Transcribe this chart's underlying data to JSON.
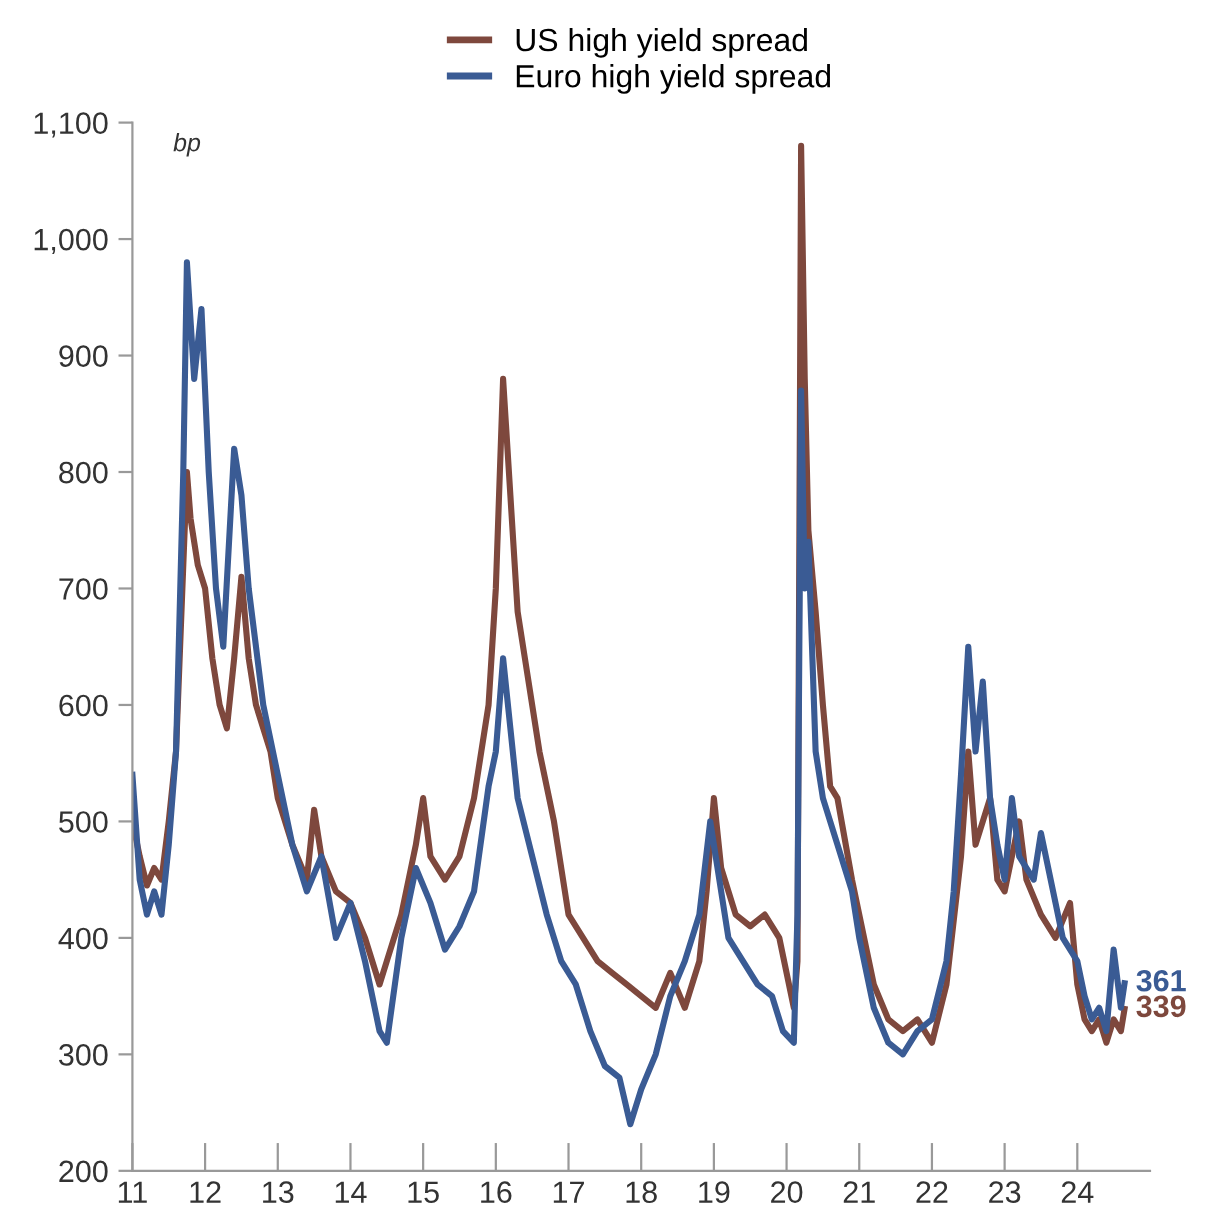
{
  "chart_data": {
    "type": "line",
    "series": [
      {
        "name": "US high yield spread",
        "color": "#7e483d",
        "x": [
          2011.0,
          2011.1,
          2011.2,
          2011.3,
          2011.4,
          2011.5,
          2011.6,
          2011.7,
          2011.75,
          2011.8,
          2011.9,
          2012.0,
          2012.1,
          2012.2,
          2012.3,
          2012.4,
          2012.5,
          2012.6,
          2012.7,
          2012.8,
          2012.9,
          2013.0,
          2013.2,
          2013.4,
          2013.5,
          2013.6,
          2013.8,
          2014.0,
          2014.2,
          2014.4,
          2014.5,
          2014.7,
          2014.9,
          2015.0,
          2015.1,
          2015.3,
          2015.5,
          2015.7,
          2015.9,
          2016.0,
          2016.1,
          2016.2,
          2016.3,
          2016.4,
          2016.6,
          2016.8,
          2017.0,
          2017.2,
          2017.4,
          2017.6,
          2017.8,
          2018.0,
          2018.2,
          2018.4,
          2018.6,
          2018.8,
          2018.9,
          2019.0,
          2019.1,
          2019.3,
          2019.5,
          2019.7,
          2019.9,
          2020.1,
          2020.15,
          2020.2,
          2020.25,
          2020.3,
          2020.4,
          2020.5,
          2020.6,
          2020.7,
          2020.9,
          2021.0,
          2021.2,
          2021.4,
          2021.6,
          2021.8,
          2022.0,
          2022.2,
          2022.4,
          2022.5,
          2022.6,
          2022.8,
          2022.9,
          2023.0,
          2023.2,
          2023.3,
          2023.5,
          2023.7,
          2023.9,
          2024.0,
          2024.1,
          2024.2,
          2024.3,
          2024.4,
          2024.5,
          2024.6,
          2024.65
        ],
        "values": [
          500,
          470,
          445,
          460,
          450,
          500,
          560,
          720,
          800,
          760,
          720,
          700,
          640,
          600,
          580,
          640,
          710,
          640,
          600,
          580,
          560,
          520,
          480,
          450,
          510,
          470,
          440,
          430,
          400,
          360,
          380,
          420,
          480,
          520,
          470,
          450,
          470,
          520,
          600,
          700,
          880,
          780,
          680,
          640,
          560,
          500,
          420,
          400,
          380,
          370,
          360,
          350,
          340,
          370,
          340,
          380,
          440,
          520,
          460,
          420,
          410,
          420,
          400,
          340,
          380,
          1080,
          880,
          750,
          680,
          600,
          530,
          520,
          450,
          420,
          360,
          330,
          320,
          330,
          310,
          360,
          470,
          560,
          480,
          520,
          450,
          440,
          500,
          450,
          420,
          400,
          430,
          360,
          330,
          320,
          330,
          310,
          330,
          320,
          339
        ]
      },
      {
        "name": "Euro high yield spread",
        "color": "#3a5b94",
        "x": [
          2011.0,
          2011.1,
          2011.2,
          2011.3,
          2011.4,
          2011.5,
          2011.6,
          2011.7,
          2011.75,
          2011.85,
          2011.95,
          2012.05,
          2012.15,
          2012.25,
          2012.4,
          2012.5,
          2012.6,
          2012.7,
          2012.8,
          2013.0,
          2013.2,
          2013.4,
          2013.6,
          2013.8,
          2014.0,
          2014.2,
          2014.4,
          2014.5,
          2014.7,
          2014.9,
          2015.1,
          2015.3,
          2015.5,
          2015.7,
          2015.9,
          2016.0,
          2016.1,
          2016.2,
          2016.3,
          2016.5,
          2016.7,
          2016.9,
          2017.1,
          2017.3,
          2017.5,
          2017.7,
          2017.85,
          2018.0,
          2018.2,
          2018.4,
          2018.6,
          2018.8,
          2018.95,
          2019.0,
          2019.2,
          2019.4,
          2019.6,
          2019.8,
          2019.95,
          2020.1,
          2020.15,
          2020.2,
          2020.25,
          2020.3,
          2020.4,
          2020.5,
          2020.7,
          2020.9,
          2021.0,
          2021.2,
          2021.4,
          2021.6,
          2021.8,
          2022.0,
          2022.2,
          2022.3,
          2022.4,
          2022.5,
          2022.6,
          2022.7,
          2022.8,
          2022.9,
          2023.0,
          2023.1,
          2023.2,
          2023.4,
          2023.5,
          2023.7,
          2023.8,
          2024.0,
          2024.1,
          2024.2,
          2024.3,
          2024.4,
          2024.5,
          2024.6,
          2024.65
        ],
        "values": [
          540,
          450,
          420,
          440,
          420,
          480,
          560,
          800,
          980,
          880,
          940,
          800,
          700,
          650,
          820,
          780,
          700,
          650,
          600,
          540,
          480,
          440,
          470,
          400,
          430,
          380,
          320,
          310,
          400,
          460,
          430,
          390,
          410,
          440,
          530,
          560,
          640,
          580,
          520,
          470,
          420,
          380,
          360,
          320,
          290,
          280,
          240,
          270,
          300,
          350,
          380,
          420,
          500,
          480,
          400,
          380,
          360,
          350,
          320,
          310,
          420,
          870,
          700,
          740,
          560,
          520,
          480,
          440,
          400,
          340,
          310,
          300,
          320,
          330,
          380,
          440,
          540,
          650,
          560,
          620,
          520,
          480,
          450,
          520,
          470,
          450,
          490,
          430,
          400,
          380,
          350,
          330,
          340,
          320,
          390,
          340,
          361
        ]
      }
    ],
    "xlim": [
      2011,
      2025
    ],
    "xticks": [
      {
        "value": 2011,
        "label": "11"
      },
      {
        "value": 2012,
        "label": "12"
      },
      {
        "value": 2013,
        "label": "13"
      },
      {
        "value": 2014,
        "label": "14"
      },
      {
        "value": 2015,
        "label": "15"
      },
      {
        "value": 2016,
        "label": "16"
      },
      {
        "value": 2017,
        "label": "17"
      },
      {
        "value": 2018,
        "label": "18"
      },
      {
        "value": 2019,
        "label": "19"
      },
      {
        "value": 2020,
        "label": "20"
      },
      {
        "value": 2021,
        "label": "21"
      },
      {
        "value": 2022,
        "label": "22"
      },
      {
        "value": 2023,
        "label": "23"
      },
      {
        "value": 2024,
        "label": "24"
      }
    ],
    "ylim": [
      200,
      1100
    ],
    "yticks": [
      200,
      300,
      400,
      500,
      600,
      700,
      800,
      900,
      {
        "value": 1000,
        "label": "1,000"
      },
      {
        "value": 1100,
        "label": "1,100"
      }
    ],
    "annotations": [
      "bp",
      {
        "text": "339",
        "x": 2024.65,
        "y": 339
      },
      {
        "text": "361",
        "x": 2024.65,
        "y": 361
      }
    ],
    "legend": "top",
    "grid": false,
    "line_style": "solid",
    "marker": "none"
  }
}
